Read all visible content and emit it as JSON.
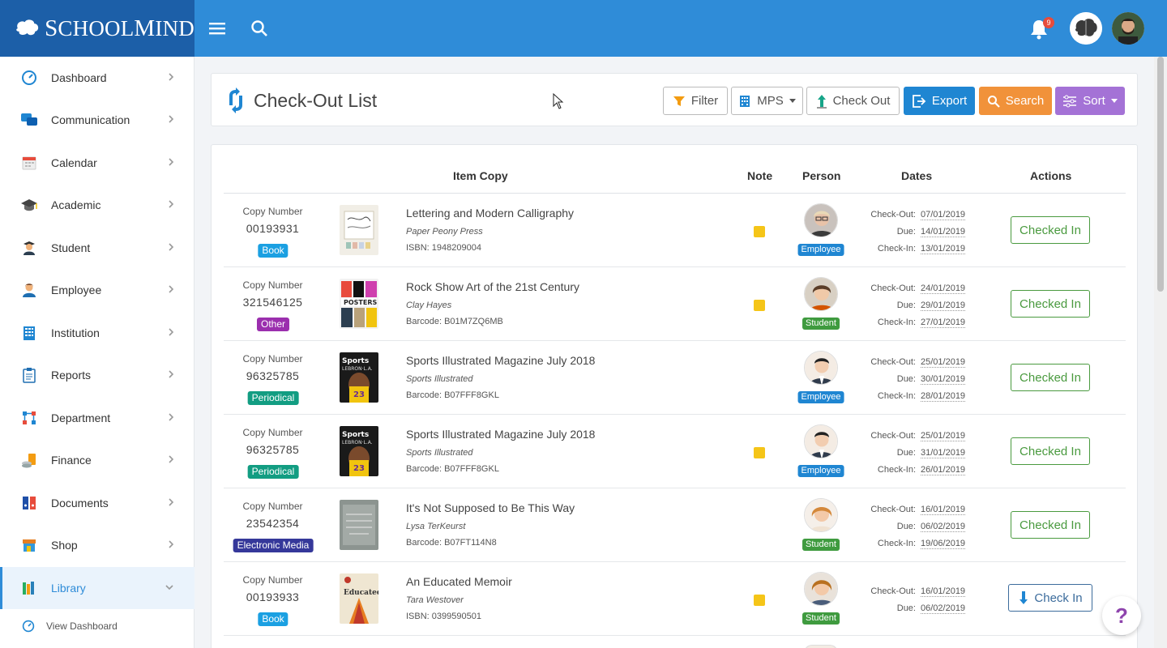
{
  "brand": {
    "name_first": "S",
    "name_rest1": "CHOOL",
    "name_m": "M",
    "name_rest2": "IND",
    "color": "#1c5fa8"
  },
  "topbar": {
    "color": "#2f8cd8",
    "notification_count": "9"
  },
  "sidebar": {
    "items": [
      {
        "label": "Dashboard",
        "icon": "dashboard-icon"
      },
      {
        "label": "Communication",
        "icon": "chat-icon"
      },
      {
        "label": "Calendar",
        "icon": "calendar-icon"
      },
      {
        "label": "Academic",
        "icon": "graduation-cap-icon"
      },
      {
        "label": "Student",
        "icon": "student-icon"
      },
      {
        "label": "Employee",
        "icon": "employee-icon"
      },
      {
        "label": "Institution",
        "icon": "building-icon"
      },
      {
        "label": "Reports",
        "icon": "clipboard-icon"
      },
      {
        "label": "Department",
        "icon": "org-chart-icon"
      },
      {
        "label": "Finance",
        "icon": "coins-icon"
      },
      {
        "label": "Documents",
        "icon": "binders-icon"
      },
      {
        "label": "Shop",
        "icon": "store-icon"
      },
      {
        "label": "Library",
        "icon": "books-icon"
      }
    ],
    "sub_item": "View Dashboard"
  },
  "header": {
    "title": "Check-Out List",
    "buttons": {
      "filter": "Filter",
      "mps": "MPS",
      "checkout": "Check Out",
      "export": "Export",
      "search": "Search",
      "sort": "Sort"
    }
  },
  "table": {
    "columns": {
      "item": "Item Copy",
      "note": "Note",
      "person": "Person",
      "dates": "Dates",
      "actions": "Actions"
    },
    "copy_number_label": "Copy Number",
    "date_labels": {
      "out": "Check-Out:",
      "due": "Due:",
      "in": "Check-In:"
    },
    "rows": [
      {
        "copy": "00193931",
        "type": "Book",
        "type_color": "#1ba0e2",
        "title": "Lettering and Modern Calligraphy",
        "author": "Paper Peony Press",
        "code": "ISBN: 1948209004",
        "note": true,
        "person_type": "Employee",
        "person_color": "#1f86d2",
        "out": "07/01/2019",
        "due": "14/01/2019",
        "in": "13/01/2019",
        "action": "Checked In"
      },
      {
        "copy": "321546125",
        "type": "Other",
        "type_color": "#9b2fae",
        "title": "Rock Show Art of the 21st Century",
        "author": "Clay Hayes",
        "code": "Barcode: B01M7ZQ6MB",
        "note": true,
        "person_type": "Student",
        "person_color": "#3f9b3f",
        "out": "24/01/2019",
        "due": "29/01/2019",
        "in": "27/01/2019",
        "action": "Checked In"
      },
      {
        "copy": "96325785",
        "type": "Periodical",
        "type_color": "#129d82",
        "title": "Sports Illustrated Magazine July 2018",
        "author": "Sports Illustrated",
        "code": "Barcode: B07FFF8GKL",
        "note": false,
        "person_type": "Employee",
        "person_color": "#1f86d2",
        "out": "25/01/2019",
        "due": "30/01/2019",
        "in": "28/01/2019",
        "action": "Checked In"
      },
      {
        "copy": "96325785",
        "type": "Periodical",
        "type_color": "#129d82",
        "title": "Sports Illustrated Magazine July 2018",
        "author": "Sports Illustrated",
        "code": "Barcode: B07FFF8GKL",
        "note": true,
        "person_type": "Employee",
        "person_color": "#1f86d2",
        "out": "25/01/2019",
        "due": "31/01/2019",
        "in": "26/01/2019",
        "action": "Checked In"
      },
      {
        "copy": "23542354",
        "type": "Electronic Media",
        "type_color": "#35389a",
        "title": "It's Not Supposed to Be This Way",
        "author": "Lysa TerKeurst",
        "code": "Barcode: B07FT114N8",
        "note": false,
        "person_type": "Student",
        "person_color": "#3f9b3f",
        "out": "16/01/2019",
        "due": "06/02/2019",
        "in": "19/06/2019",
        "action": "Checked In"
      },
      {
        "copy": "00193933",
        "type": "Book",
        "type_color": "#1ba0e2",
        "title": "An Educated Memoir",
        "author": "Tara Westover",
        "code": "ISBN: 0399590501",
        "note": true,
        "person_type": "Student",
        "person_color": "#3f9b3f",
        "out": "16/01/2019",
        "due": "06/02/2019",
        "in": "",
        "action": "Check In"
      }
    ]
  },
  "help_label": "?"
}
